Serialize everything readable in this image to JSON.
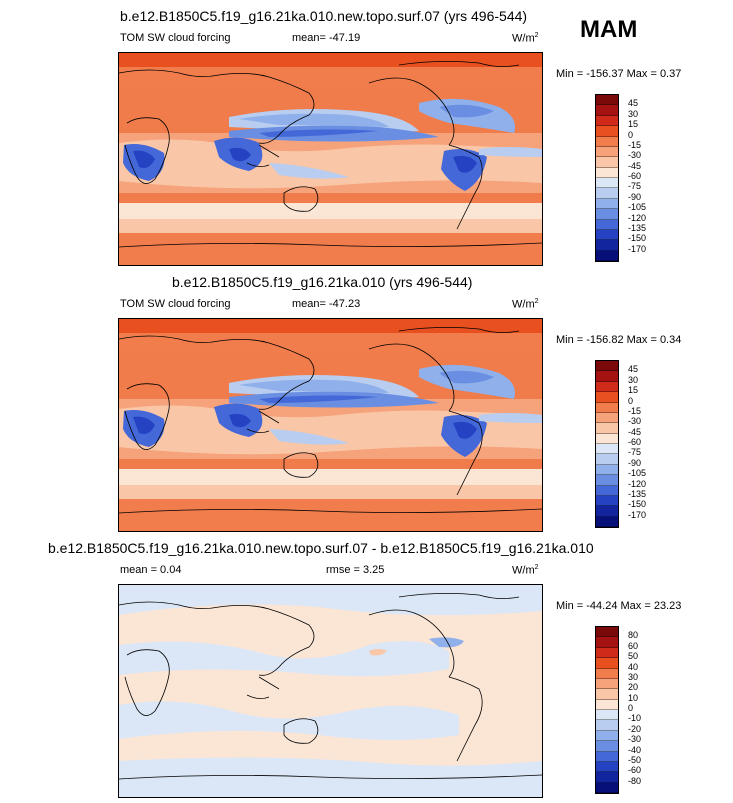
{
  "season": "MAM",
  "panels": [
    {
      "title": "b.e12.B1850C5.f19_g16.21ka.010.new.topo.surf.07 (yrs 496-544)",
      "variable": "TOM SW cloud forcing",
      "stat": "mean= -47.19",
      "stat2": "",
      "units": "W/m",
      "units_sup": "2",
      "minmax": "Min = -156.37 Max =   0.37",
      "colorbar_labels": [
        "45",
        "30",
        "15",
        "0",
        "-15",
        "-30",
        "-45",
        "-60",
        "-75",
        "-90",
        "-105",
        "-120",
        "-135",
        "-150",
        "-170"
      ]
    },
    {
      "title": "b.e12.B1850C5.f19_g16.21ka.010 (yrs 496-544)",
      "variable": "TOM SW cloud forcing",
      "stat": "mean= -47.23",
      "stat2": "",
      "units": "W/m",
      "units_sup": "2",
      "minmax": "Min = -156.82 Max =   0.34",
      "colorbar_labels": [
        "45",
        "30",
        "15",
        "0",
        "-15",
        "-30",
        "-45",
        "-60",
        "-75",
        "-90",
        "-105",
        "-120",
        "-135",
        "-150",
        "-170"
      ]
    },
    {
      "title": "b.e12.B1850C5.f19_g16.21ka.010.new.topo.surf.07 - b.e12.B1850C5.f19_g16.21ka.010",
      "variable": "",
      "stat": "mean =   0.04",
      "stat2": "rmse =   3.25",
      "units": "W/m",
      "units_sup": "2",
      "minmax": "Min = -44.24 Max =  23.23",
      "colorbar_labels": [
        "80",
        "60",
        "50",
        "40",
        "30",
        "20",
        "10",
        "0",
        "-10",
        "-20",
        "-30",
        "-40",
        "-50",
        "-60",
        "-80"
      ]
    }
  ],
  "colors": {
    "cloud_forcing_scale": [
      "#7a0a0a",
      "#a51212",
      "#d02a1a",
      "#e8501f",
      "#f17d4c",
      "#f6a37c",
      "#f9c7a8",
      "#fbe6d6",
      "#dbe6f6",
      "#b8cdf0",
      "#8fb0ea",
      "#6a8fe2",
      "#4568d8",
      "#2442c2",
      "#12259e",
      "#070f78"
    ],
    "difference_scale": [
      "#7a0a0a",
      "#a51212",
      "#d02a1a",
      "#e8501f",
      "#f17d4c",
      "#f6a37c",
      "#f9c7a8",
      "#fbe6d6",
      "#dbe6f6",
      "#b8cdf0",
      "#8fb0ea",
      "#6a8fe2",
      "#4568d8",
      "#2442c2",
      "#12259e",
      "#070f78"
    ]
  }
}
